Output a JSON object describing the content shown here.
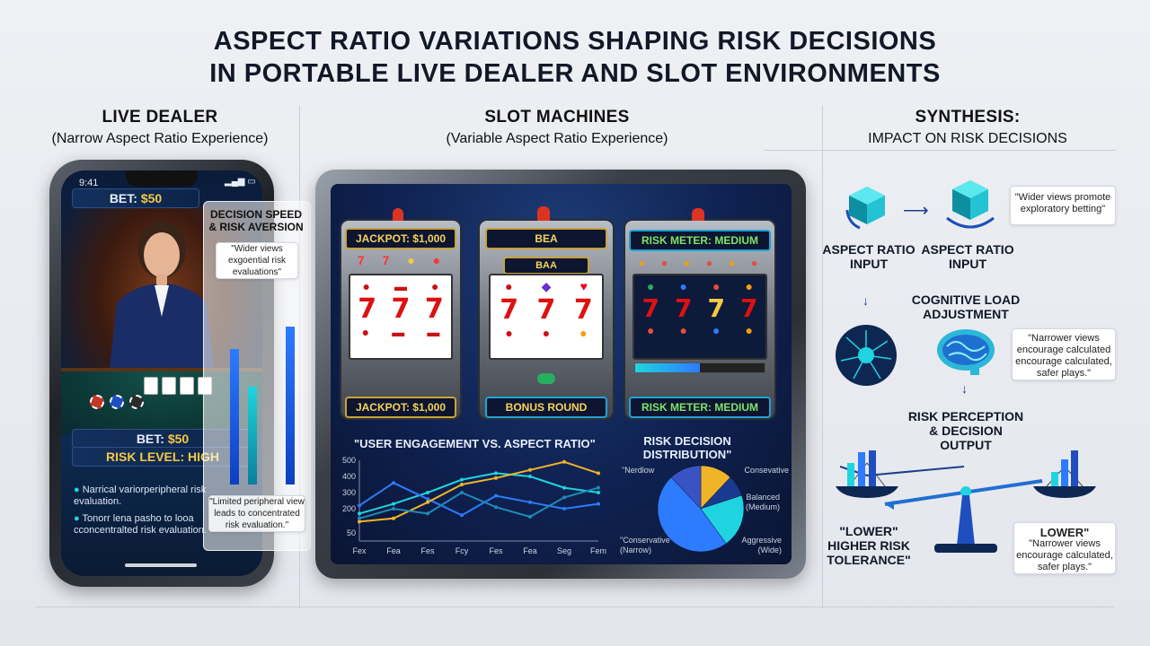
{
  "title": {
    "line1": "ASPECT RATIO VARIATIONS SHAPING RISK DECISIONS",
    "line2": "IN PORTABLE LIVE DEALER AND SLOT ENVIRONMENTS"
  },
  "live_dealer": {
    "heading": "LIVE DEALER",
    "subheading": "(Narrow Aspect Ratio Experience)",
    "phone": {
      "time": "9:41",
      "bet_top_label": "BET:",
      "bet_top_value": "$50",
      "bet_bottom_label": "BET:",
      "bet_bottom_value": "$50",
      "risk_level": "RISK LEVEL: HIGH",
      "notes": [
        "Narrical variorperipheral risk evaluation.",
        "Tonorr lena pasho to looa cconcentralted risk evaluation."
      ]
    },
    "overlay": {
      "title_line1": "DECISION SPEED",
      "title_line2": "& RISK AVERSION",
      "quote": "\"Wider views exgoential risk evaluations\"",
      "bottom_quote": "\"Limited peripheral view leads to concentrated risk evaluation.\"",
      "bars": [
        0.72,
        0.52,
        0.84
      ]
    }
  },
  "slot_machines": {
    "heading": "SLOT MACHINES",
    "subheading": "(Variable Aspect Ratio Experience)",
    "machines": [
      {
        "top_label": "JACKPOT: $1,000",
        "reel_label": "",
        "bottom_label": "JACKPOT: $1,000"
      },
      {
        "top_label": "BEA",
        "reel_label": "BAA",
        "bottom_label": "BONUS ROUND"
      },
      {
        "top_label": "RISK METER: MEDIUM",
        "reel_label": "",
        "bottom_label": "RISK METER: MEDIUM"
      }
    ],
    "symbols": {
      "seven": "7",
      "cherry": "cherry-icon",
      "fruit": "fruit-icon"
    },
    "colors": {
      "gold": "#f6d35b",
      "reel_red": "#d11111",
      "accent_blue": "#2d7bff"
    }
  },
  "chart_data": [
    {
      "type": "line",
      "title": "\"USER ENGAGEMENT VS. ASPECT RATIO\"",
      "x": [
        "Fex",
        "Fea",
        "Fes",
        "Fcy",
        "Fes",
        "Fea",
        "Seg",
        "Fem"
      ],
      "ylim": [
        0,
        500
      ],
      "yticks": [
        50,
        200,
        300,
        400,
        500
      ],
      "series": [
        {
          "color": "#1fd4e0",
          "values": [
            170,
            230,
            300,
            380,
            420,
            400,
            330,
            300
          ]
        },
        {
          "color": "#2d7bff",
          "values": [
            220,
            360,
            260,
            160,
            280,
            240,
            200,
            230
          ]
        },
        {
          "color": "#f0b429",
          "values": [
            120,
            140,
            240,
            350,
            390,
            440,
            490,
            420
          ]
        },
        {
          "color": "#1f8ab8",
          "values": [
            140,
            200,
            170,
            300,
            210,
            150,
            270,
            330
          ]
        }
      ]
    },
    {
      "type": "pie",
      "title": "RISK DECISION DISTRIBUTION\"",
      "labels": [
        "\"Nerdlow",
        "Consevative",
        "Balanced (Medium)",
        "Aggressive (Wide)",
        "\"Conservative (Narrow)"
      ],
      "values": [
        12,
        8,
        20,
        48,
        12
      ],
      "colors": [
        "#f0b429",
        "#1b3a8f",
        "#1fd4e0",
        "#2d7bff",
        "#3a53c4"
      ]
    }
  ],
  "synthesis": {
    "heading": "SYNTHESIS:",
    "subheading": "IMPACT ON RISK DECISIONS",
    "input_left": "ASPECT RATIO INPUT",
    "input_right": "ASPECT RATIO INPUT",
    "quote_wide": "\"Wider views promote exploratory betting\"",
    "cognitive": "COGNITIVE LOAD ADJUSTMENT",
    "quote_narrow": "\"Narrower views encourage calculated encourage calculated, safer plays.\"",
    "output": "RISK PERCEPTION & DECISION OUTPUT",
    "left_result": "\"LOWER\" HIGHER RISK TOLERANCE\"",
    "right_result_title": "LOWER\"",
    "right_result_quote": "\"Narrower views encourage calculated, safer plays.\""
  }
}
